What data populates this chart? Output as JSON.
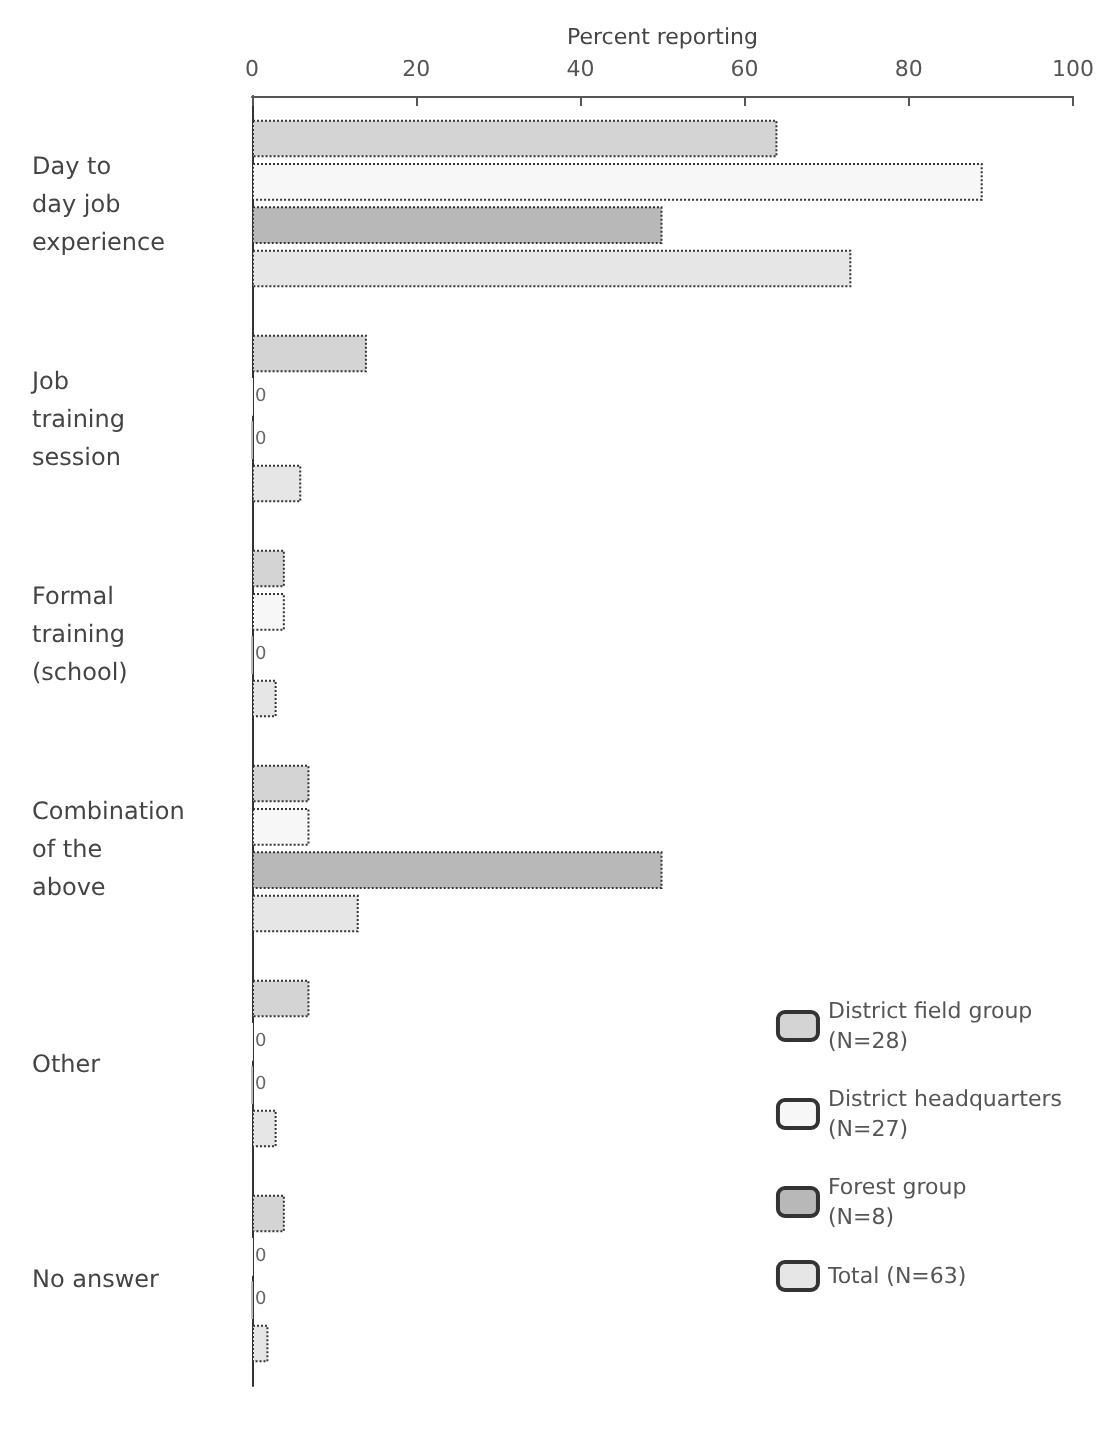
{
  "chart_data": {
    "type": "bar",
    "orientation": "horizontal",
    "xlabel": "Percent reporting",
    "categories": [
      "Day to\nday job\nexperience",
      "Job\ntraining\nsession",
      "Formal\ntraining\n(school)",
      "Combination\nof the\nabove",
      "Other",
      "No answer"
    ],
    "series": [
      {
        "name": "District field group\n(N=28)",
        "color": "#d4d4d4",
        "values": [
          64,
          14,
          4,
          7,
          7,
          4
        ]
      },
      {
        "name": "District headquarters\n(N=27)",
        "color": "#f7f7f7",
        "values": [
          89,
          0,
          4,
          7,
          0,
          0
        ],
        "value_labels": [
          null,
          "0",
          null,
          null,
          "0",
          "0"
        ]
      },
      {
        "name": "Forest group\n(N=8)",
        "color": "#b8b8b8",
        "values": [
          50,
          0,
          0,
          50,
          0,
          0
        ],
        "value_labels": [
          null,
          "0",
          "0",
          null,
          "0",
          "0"
        ]
      },
      {
        "name": "Total (N=63)",
        "color": "#e6e6e6",
        "values": [
          73,
          6,
          3,
          13,
          3,
          2
        ]
      }
    ],
    "xlim": [
      0,
      100
    ],
    "xticks": [
      0,
      20,
      40,
      60,
      80,
      100
    ],
    "grid": false,
    "legend": "bottom right"
  }
}
